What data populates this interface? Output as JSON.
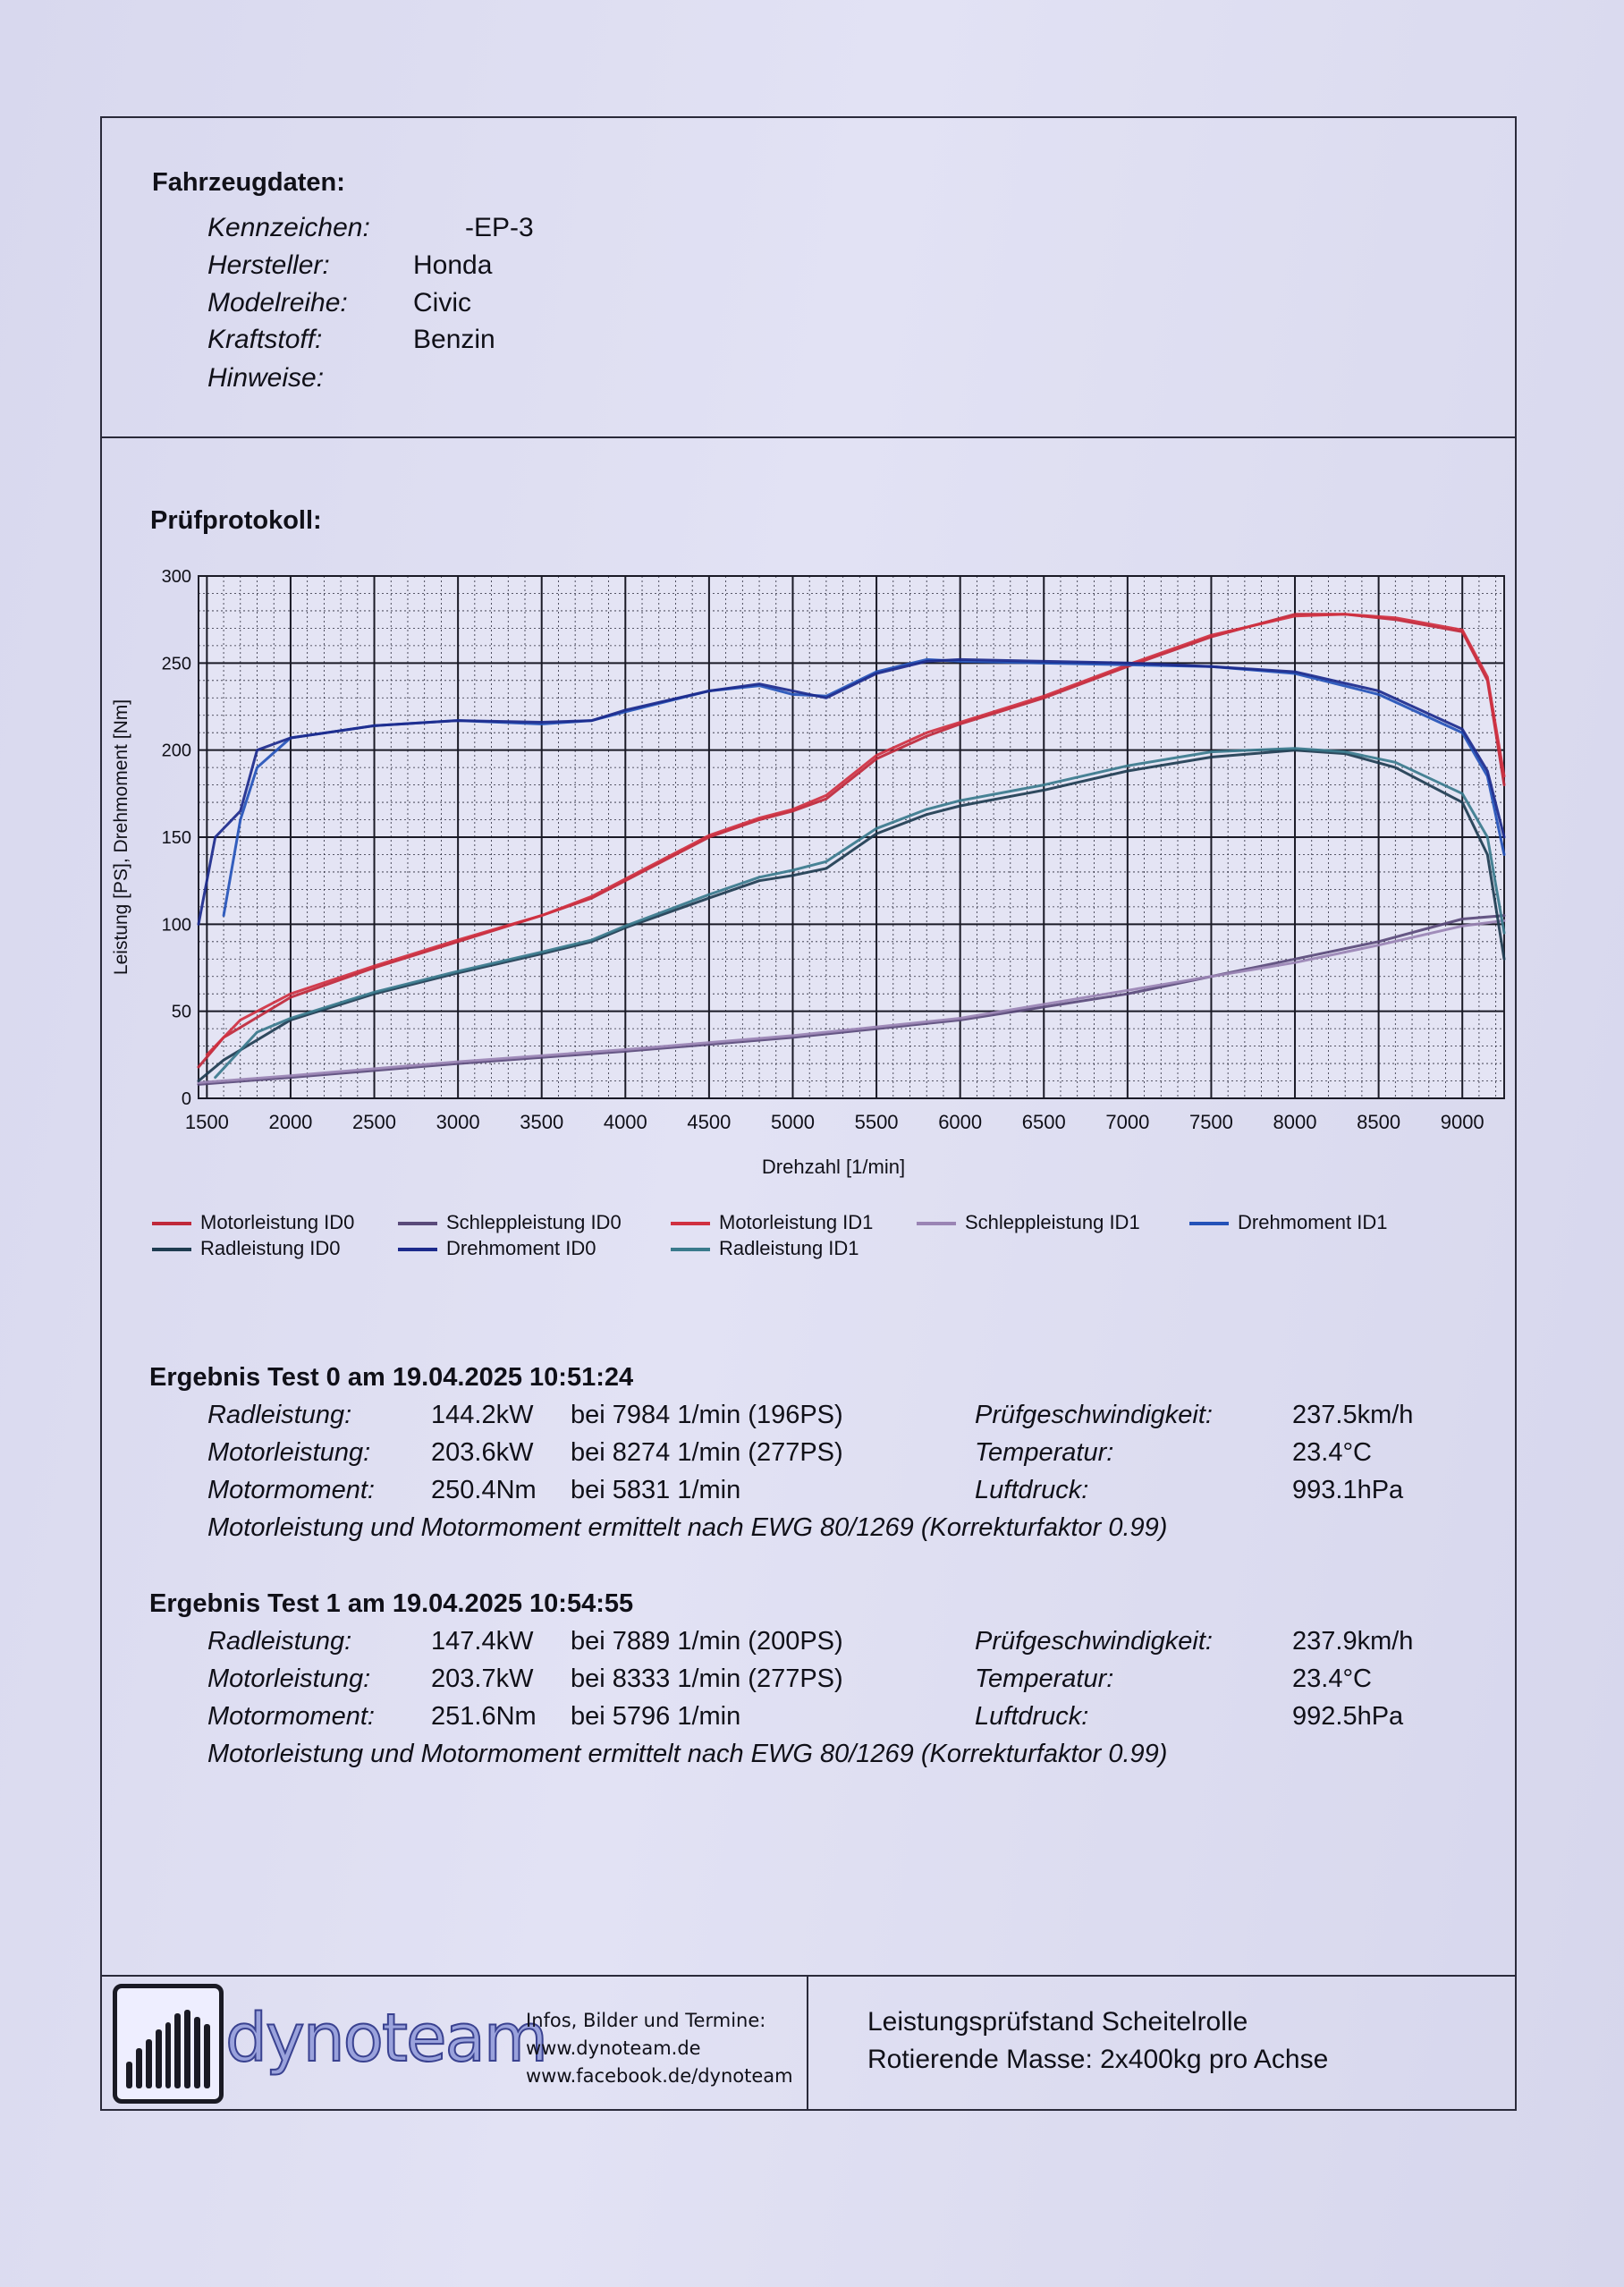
{
  "vehicle": {
    "heading": "Fahrzeugdaten:",
    "fields": [
      {
        "label": "Kennzeichen:",
        "value": "-EP-3"
      },
      {
        "label": "Hersteller:",
        "value": "Honda"
      },
      {
        "label": "Modelreihe:",
        "value": "Civic"
      },
      {
        "label": "Kraftstoff:",
        "value": "Benzin"
      },
      {
        "label": "Hinweise:",
        "value": ""
      }
    ]
  },
  "protocol": {
    "heading": "Prüfprotokoll:"
  },
  "chart_data": {
    "type": "line",
    "xlabel": "Drehzahl [1/min]",
    "ylabel": "Leistung [PS], Drehmoment [Nm]",
    "xlim": [
      1450,
      9250
    ],
    "ylim": [
      0,
      300
    ],
    "xticks": [
      1500,
      2000,
      2500,
      3000,
      3500,
      4000,
      4500,
      5000,
      5500,
      6000,
      6500,
      7000,
      7500,
      8000,
      8500,
      9000
    ],
    "yticks": [
      0,
      50,
      100,
      150,
      200,
      250,
      300
    ],
    "grid": true,
    "legend_position": "bottom",
    "series": [
      {
        "name": "Motorleistung ID0",
        "color": "#c0283a",
        "x": [
          1450,
          1600,
          2000,
          2500,
          3000,
          3500,
          3800,
          4000,
          4500,
          4800,
          5000,
          5200,
          5500,
          5800,
          6000,
          6500,
          7000,
          7500,
          8000,
          8300,
          8600,
          9000,
          9150,
          9250
        ],
        "y": [
          18,
          35,
          58,
          75,
          90,
          105,
          115,
          125,
          150,
          160,
          165,
          172,
          195,
          208,
          215,
          230,
          248,
          265,
          278,
          278,
          275,
          268,
          240,
          180
        ]
      },
      {
        "name": "Schleppleistung ID0",
        "color": "#5a4a7a",
        "x": [
          1450,
          2000,
          3000,
          4000,
          5000,
          6000,
          7000,
          8000,
          8500,
          9000,
          9250
        ],
        "y": [
          8,
          12,
          20,
          27,
          35,
          45,
          60,
          80,
          90,
          103,
          105
        ]
      },
      {
        "name": "Motorleistung ID1",
        "color": "#d03040",
        "x": [
          1500,
          1700,
          2000,
          2500,
          3000,
          3500,
          3800,
          4000,
          4500,
          4800,
          5000,
          5200,
          5500,
          5800,
          6000,
          6500,
          7000,
          7500,
          8000,
          8300,
          8600,
          9000,
          9150,
          9250
        ],
        "y": [
          25,
          45,
          60,
          76,
          91,
          105,
          116,
          126,
          151,
          161,
          166,
          174,
          197,
          210,
          216,
          231,
          249,
          266,
          277,
          278,
          276,
          269,
          242,
          185
        ]
      },
      {
        "name": "Schleppleistung ID1",
        "color": "#9a84b4",
        "x": [
          1450,
          2000,
          3000,
          4000,
          5000,
          6000,
          7000,
          8000,
          8500,
          9000,
          9250
        ],
        "y": [
          9,
          13,
          21,
          28,
          36,
          46,
          62,
          78,
          88,
          99,
          102
        ]
      },
      {
        "name": "Drehmoment ID1",
        "color": "#2452b8",
        "x": [
          1600,
          1700,
          1800,
          2000,
          2500,
          3000,
          3500,
          3800,
          4000,
          4500,
          4800,
          5000,
          5200,
          5500,
          5800,
          6000,
          7000,
          7500,
          8000,
          8500,
          9000,
          9150,
          9250
        ],
        "y": [
          105,
          160,
          190,
          207,
          214,
          217,
          215,
          217,
          222,
          234,
          237,
          232,
          231,
          245,
          252,
          251,
          249,
          248,
          244,
          232,
          210,
          185,
          140
        ]
      },
      {
        "name": "Radleistung ID0",
        "color": "#1e3c50",
        "x": [
          1450,
          1600,
          2000,
          2500,
          3000,
          3500,
          3800,
          4000,
          4500,
          4800,
          5000,
          5200,
          5500,
          5800,
          6000,
          6500,
          7000,
          7500,
          8000,
          8300,
          8600,
          9000,
          9150,
          9250
        ],
        "y": [
          10,
          22,
          45,
          60,
          72,
          83,
          90,
          98,
          115,
          125,
          128,
          132,
          152,
          163,
          168,
          177,
          188,
          196,
          200,
          198,
          190,
          170,
          140,
          80
        ]
      },
      {
        "name": "Drehmoment ID0",
        "color": "#1c2a8c",
        "x": [
          1450,
          1550,
          1700,
          1800,
          2000,
          2500,
          3000,
          3500,
          3800,
          4000,
          4500,
          4800,
          5000,
          5200,
          5500,
          5800,
          6000,
          7000,
          7500,
          8000,
          8500,
          9000,
          9150,
          9250
        ],
        "y": [
          100,
          150,
          165,
          200,
          207,
          214,
          217,
          216,
          217,
          223,
          234,
          238,
          234,
          230,
          244,
          251,
          252,
          250,
          248,
          245,
          234,
          212,
          188,
          150
        ]
      },
      {
        "name": "Radleistung ID1",
        "color": "#3a7a8c",
        "x": [
          1550,
          1800,
          2000,
          2500,
          3000,
          3500,
          3800,
          4000,
          4500,
          4800,
          5000,
          5200,
          5500,
          5800,
          6000,
          6500,
          7000,
          7500,
          8000,
          8300,
          8600,
          9000,
          9150,
          9250
        ],
        "y": [
          12,
          38,
          46,
          61,
          73,
          84,
          91,
          99,
          117,
          127,
          131,
          136,
          155,
          166,
          171,
          180,
          191,
          199,
          201,
          199,
          193,
          175,
          150,
          95
        ]
      }
    ]
  },
  "legend_rows": [
    [
      "Motorleistung ID0",
      "Schleppleistung ID0",
      "Motorleistung ID1",
      "Schleppleistung ID1",
      "Drehmoment ID1"
    ],
    [
      "Radleistung ID0",
      "Drehmoment ID0",
      "Radleistung ID1"
    ]
  ],
  "results": [
    {
      "title": "Ergebnis Test 0 am 19.04.2025 10:51:24",
      "rows": [
        {
          "label": "Radleistung:",
          "value": "144.2kW",
          "detail": "bei 7984 1/min (196PS)",
          "label2": "Prüfgeschwindigkeit:",
          "value2": "237.5km/h"
        },
        {
          "label": "Motorleistung:",
          "value": "203.6kW",
          "detail": "bei 8274 1/min (277PS)",
          "label2": "Temperatur:",
          "value2": "23.4°C"
        },
        {
          "label": "Motormoment:",
          "value": "250.4Nm",
          "detail": "bei 5831 1/min",
          "label2": "Luftdruck:",
          "value2": "993.1hPa"
        }
      ],
      "note": "Motorleistung und Motormoment ermittelt nach EWG 80/1269 (Korrekturfaktor 0.99)"
    },
    {
      "title": "Ergebnis Test 1 am 19.04.2025 10:54:55",
      "rows": [
        {
          "label": "Radleistung:",
          "value": "147.4kW",
          "detail": "bei 7889 1/min (200PS)",
          "label2": "Prüfgeschwindigkeit:",
          "value2": "237.9km/h"
        },
        {
          "label": "Motorleistung:",
          "value": "203.7kW",
          "detail": "bei 8333 1/min (277PS)",
          "label2": "Temperatur:",
          "value2": "23.4°C"
        },
        {
          "label": "Motormoment:",
          "value": "251.6Nm",
          "detail": "bei 5796 1/min",
          "label2": "Luftdruck:",
          "value2": "992.5hPa"
        }
      ],
      "note": "Motorleistung und Motormoment ermittelt nach EWG 80/1269 (Korrekturfaktor 0.99)"
    }
  ],
  "footer": {
    "logo_text": "dynoteam",
    "info_lines": [
      "Infos, Bilder und Termine:",
      "www.dynoteam.de",
      "www.facebook.de/dynoteam"
    ],
    "rig_lines": [
      "Leistungsprüfstand Scheitelrolle",
      "Rotierende Masse: 2x400kg pro Achse"
    ]
  }
}
